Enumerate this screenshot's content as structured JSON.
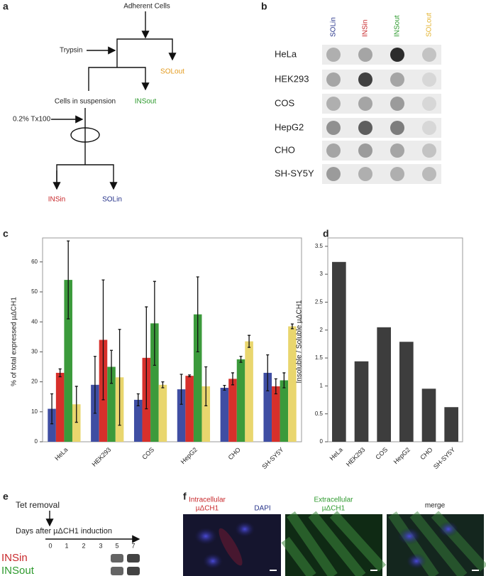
{
  "panel_a": {
    "letter": "a",
    "start": "Adherent Cells",
    "trypsin": "Trypsin",
    "solout": "SOLout",
    "insout": "INSout",
    "suspension": "Cells in suspension",
    "detergent": "0.2% Tx100",
    "insin": "INSin",
    "solin": "SOLin"
  },
  "panel_b": {
    "letter": "b",
    "columns": [
      "SOLin",
      "INSin",
      "INSout",
      "SOLout"
    ],
    "rows": [
      "HeLa",
      "HEK293",
      "COS",
      "HepG2",
      "CHO",
      "SH-SY5Y"
    ]
  },
  "chart_data": [
    {
      "type": "bar",
      "letter": "c",
      "ylabel": "% of total expressed µΔCH1",
      "categories": [
        "HeLa",
        "HEK293",
        "COS",
        "HepG2",
        "CHO",
        "SH-SY5Y"
      ],
      "series": [
        {
          "color": "#3f4ea3",
          "values": [
            11,
            19,
            14,
            17.5,
            18,
            23
          ],
          "errors": [
            5,
            9.5,
            2,
            5,
            0.8,
            6
          ]
        },
        {
          "color": "#d7302b",
          "values": [
            23,
            34,
            28,
            22,
            21,
            18.5
          ],
          "errors": [
            1.3,
            20,
            17,
            0.3,
            2,
            2.5
          ]
        },
        {
          "color": "#3b9a3b",
          "values": [
            54,
            25,
            39.5,
            42.5,
            27.5,
            20.5
          ],
          "errors": [
            13,
            5.5,
            14,
            12.5,
            1,
            2.5
          ]
        },
        {
          "color": "#e9d66e",
          "values": [
            12.5,
            21.5,
            19,
            18.5,
            33.5,
            38.5
          ],
          "errors": [
            6,
            16,
            1,
            6.5,
            2,
            0.8
          ]
        }
      ],
      "ylim": [
        0,
        68
      ],
      "yticks": [
        0,
        10,
        20,
        30,
        40,
        50,
        60
      ]
    },
    {
      "type": "bar",
      "letter": "d",
      "ylabel": "Insoluble / Soluble µΔCH1",
      "categories": [
        "HeLa",
        "HEK293",
        "COS",
        "HepG2",
        "CHO",
        "SH-SY5Y"
      ],
      "values": [
        3.22,
        1.44,
        2.05,
        1.79,
        0.95,
        0.62
      ],
      "color": "#3d3d3d",
      "ylim": [
        0,
        3.65
      ],
      "yticks": [
        0,
        0.5,
        1,
        1.5,
        2,
        2.5,
        3,
        3.5
      ]
    }
  ],
  "panel_e": {
    "letter": "e",
    "event": "Tet removal",
    "axis": "Days after µΔCH1 induction",
    "days": [
      "0",
      "1",
      "2",
      "3",
      "5",
      "7"
    ],
    "rows": [
      "INSin",
      "INSout"
    ]
  },
  "panel_f": {
    "letter": "f",
    "intra": [
      "Intracellular",
      "µΔCH1"
    ],
    "dapi": "DAPI",
    "extra": [
      "Extracellular",
      "µΔCH1"
    ],
    "merge": "merge"
  }
}
